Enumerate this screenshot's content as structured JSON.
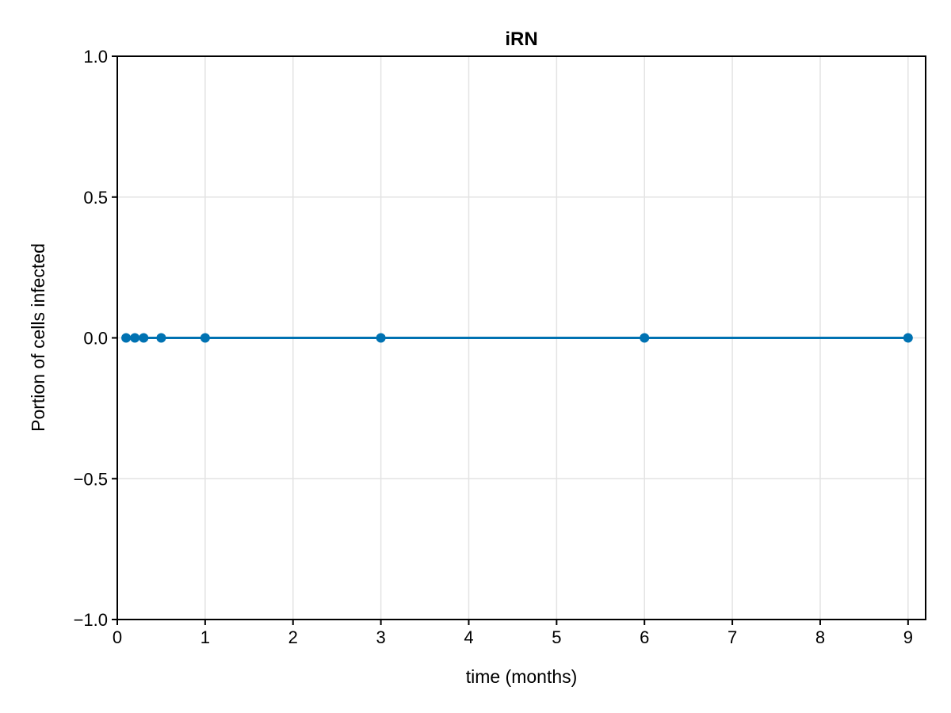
{
  "chart_data": {
    "type": "line",
    "title": "iRN",
    "xlabel": "time (months)",
    "ylabel": "Portion of cells infected",
    "xlim": [
      0,
      9.2
    ],
    "ylim": [
      -1.0,
      1.0
    ],
    "xticks": [
      0,
      1,
      2,
      3,
      4,
      5,
      6,
      7,
      8,
      9
    ],
    "xtick_labels": [
      "0",
      "1",
      "2",
      "3",
      "4",
      "5",
      "6",
      "7",
      "8",
      "9"
    ],
    "yticks": [
      -1.0,
      -0.5,
      0.0,
      0.5,
      1.0
    ],
    "ytick_labels": [
      "−1.0",
      "−0.5",
      "0.0",
      "0.5",
      "1.0"
    ],
    "grid": true,
    "series": [
      {
        "name": "iRN",
        "color": "#0072b2",
        "x": [
          0.1,
          0.2,
          0.3,
          0.5,
          1,
          3,
          6,
          9
        ],
        "y": [
          0,
          0,
          0,
          0,
          0,
          0,
          0,
          0
        ]
      }
    ]
  }
}
